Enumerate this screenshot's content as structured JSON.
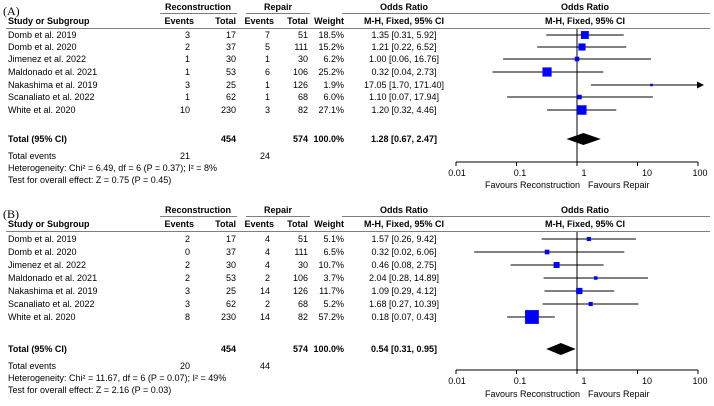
{
  "chart_data": [
    {
      "type": "forest",
      "panel_label": "(A)",
      "header": {
        "col_study": "Study or Subgroup",
        "group1": "Reconstruction",
        "group2": "Repair",
        "events": "Events",
        "total": "Total",
        "weight": "Weight",
        "or_title": "Odds Ratio",
        "or_method": "M-H, Fixed, 95% CI"
      },
      "studies": [
        {
          "name": "Domb et al. 2019",
          "e1": "3",
          "t1": "17",
          "e2": "7",
          "t2": "51",
          "weight": "18.5%",
          "ci_text": "1.35 [0.31, 5.92]",
          "or": 1.35,
          "lo": 0.31,
          "hi": 5.92,
          "w": 18.5
        },
        {
          "name": "Domb et al. 2020",
          "e1": "2",
          "t1": "37",
          "e2": "5",
          "t2": "111",
          "weight": "15.2%",
          "ci_text": "1.21 [0.22, 6.52]",
          "or": 1.21,
          "lo": 0.22,
          "hi": 6.52,
          "w": 15.2
        },
        {
          "name": "Jimenez et al. 2022",
          "e1": "1",
          "t1": "30",
          "e2": "1",
          "t2": "30",
          "weight": "6.2%",
          "ci_text": "1.00 [0.06, 16.76]",
          "or": 1.0,
          "lo": 0.06,
          "hi": 16.76,
          "w": 6.2
        },
        {
          "name": "Maldonado et al. 2021",
          "e1": "1",
          "t1": "53",
          "e2": "6",
          "t2": "106",
          "weight": "25.2%",
          "ci_text": "0.32 [0.04, 2.73]",
          "or": 0.32,
          "lo": 0.04,
          "hi": 2.73,
          "w": 25.2
        },
        {
          "name": "Nakashima et al. 2019",
          "e1": "3",
          "t1": "25",
          "e2": "1",
          "t2": "126",
          "weight": "1.9%",
          "ci_text": "17.05 [1.70, 171.40]",
          "or": 17.05,
          "lo": 1.7,
          "hi": 171.4,
          "w": 1.9
        },
        {
          "name": "Scanaliato et al. 2022",
          "e1": "1",
          "t1": "62",
          "e2": "1",
          "t2": "68",
          "weight": "6.0%",
          "ci_text": "1.10 [0.07, 17.94]",
          "or": 1.1,
          "lo": 0.07,
          "hi": 17.94,
          "w": 6.0
        },
        {
          "name": "White et al. 2020",
          "e1": "10",
          "t1": "230",
          "e2": "3",
          "t2": "82",
          "weight": "27.1%",
          "ci_text": "1.20 [0.32, 4.46]",
          "or": 1.2,
          "lo": 0.32,
          "hi": 4.46,
          "w": 27.1
        }
      ],
      "total": {
        "label": "Total (95% CI)",
        "t1": "454",
        "t2": "574",
        "weight": "100.0%",
        "ci_text": "1.28 [0.67, 2.47]",
        "or": 1.28,
        "lo": 0.67,
        "hi": 2.47
      },
      "total_events": {
        "label": "Total events",
        "e1": "21",
        "e2": "24"
      },
      "heterogeneity": "Heterogeneity: Chi² = 6.49, df = 6 (P = 0.37); I² = 8%",
      "overall_effect": "Test for overall effect: Z = 0.75 (P = 0.45)",
      "axis": {
        "ticks": [
          0.01,
          0.1,
          1,
          10,
          100
        ],
        "tick_labels": [
          "0.01",
          "0.1",
          "1",
          "10",
          "100"
        ],
        "xlim": [
          0.01,
          100
        ],
        "scale": "log"
      },
      "favours_left": "Favours Reconstruction",
      "favours_right": "Favours Repair"
    },
    {
      "type": "forest",
      "panel_label": "(B)",
      "header": {
        "col_study": "Study or Subgroup",
        "group1": "Reconstruction",
        "group2": "Repair",
        "events": "Events",
        "total": "Total",
        "weight": "Weight",
        "or_title": "Odds Ratio",
        "or_method": "M-H, Fixed, 95% CI"
      },
      "studies": [
        {
          "name": "Domb et al. 2019",
          "e1": "2",
          "t1": "17",
          "e2": "4",
          "t2": "51",
          "weight": "5.1%",
          "ci_text": "1.57 [0.26, 9.42]",
          "or": 1.57,
          "lo": 0.26,
          "hi": 9.42,
          "w": 5.1
        },
        {
          "name": "Domb et al. 2020",
          "e1": "0",
          "t1": "37",
          "e2": "4",
          "t2": "111",
          "weight": "6.5%",
          "ci_text": "0.32 [0.02, 6.06]",
          "or": 0.32,
          "lo": 0.02,
          "hi": 6.06,
          "w": 6.5
        },
        {
          "name": "Jimenez et al. 2022",
          "e1": "2",
          "t1": "30",
          "e2": "4",
          "t2": "30",
          "weight": "10.7%",
          "ci_text": "0.46 [0.08, 2.75]",
          "or": 0.46,
          "lo": 0.08,
          "hi": 2.75,
          "w": 10.7
        },
        {
          "name": "Maldonado et al. 2021",
          "e1": "2",
          "t1": "53",
          "e2": "2",
          "t2": "106",
          "weight": "3.7%",
          "ci_text": "2.04 [0.28, 14.89]",
          "or": 2.04,
          "lo": 0.28,
          "hi": 14.89,
          "w": 3.7
        },
        {
          "name": "Nakashima et al. 2019",
          "e1": "3",
          "t1": "25",
          "e2": "14",
          "t2": "126",
          "weight": "11.7%",
          "ci_text": "1.09 [0.29, 4.12]",
          "or": 1.09,
          "lo": 0.29,
          "hi": 4.12,
          "w": 11.7
        },
        {
          "name": "Scanaliato et al. 2022",
          "e1": "3",
          "t1": "62",
          "e2": "2",
          "t2": "68",
          "weight": "5.2%",
          "ci_text": "1.68 [0.27, 10.39]",
          "or": 1.68,
          "lo": 0.27,
          "hi": 10.39,
          "w": 5.2
        },
        {
          "name": "White et al. 2020",
          "e1": "8",
          "t1": "230",
          "e2": "14",
          "t2": "82",
          "weight": "57.2%",
          "ci_text": "0.18 [0.07, 0.43]",
          "or": 0.18,
          "lo": 0.07,
          "hi": 0.43,
          "w": 57.2
        }
      ],
      "total": {
        "label": "Total (95% CI)",
        "t1": "454",
        "t2": "574",
        "weight": "100.0%",
        "ci_text": "0.54 [0.31, 0.95]",
        "or": 0.54,
        "lo": 0.31,
        "hi": 0.95
      },
      "total_events": {
        "label": "Total events",
        "e1": "20",
        "e2": "44"
      },
      "heterogeneity": "Heterogeneity: Chi² = 11.67, df = 6 (P = 0.07); I² = 49%",
      "overall_effect": "Test for overall effect: Z = 2.16 (P = 0.03)",
      "axis": {
        "ticks": [
          0.01,
          0.1,
          1,
          10,
          100
        ],
        "tick_labels": [
          "0.01",
          "0.1",
          "1",
          "10",
          "100"
        ],
        "xlim": [
          0.01,
          100
        ],
        "scale": "log"
      },
      "favours_left": "Favours Reconstruction",
      "favours_right": "Favours Repair"
    }
  ],
  "colors": {
    "square": "#0000ff",
    "line": "#000000",
    "rule": "#7f7f7f",
    "arrow": "#000000",
    "diamond": "#000000"
  }
}
